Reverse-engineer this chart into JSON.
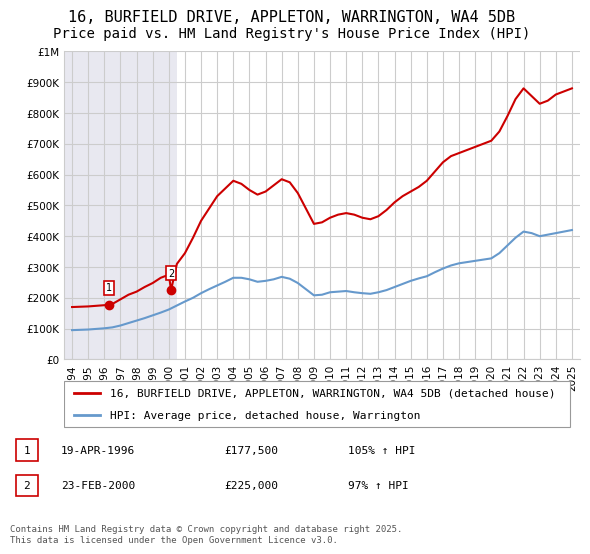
{
  "title": "16, BURFIELD DRIVE, APPLETON, WARRINGTON, WA4 5DB",
  "subtitle": "Price paid vs. HM Land Registry's House Price Index (HPI)",
  "legend_label_red": "16, BURFIELD DRIVE, APPLETON, WARRINGTON, WA4 5DB (detached house)",
  "legend_label_blue": "HPI: Average price, detached house, Warrington",
  "footnote": "Contains HM Land Registry data © Crown copyright and database right 2025.\nThis data is licensed under the Open Government Licence v3.0.",
  "sale_points": [
    {
      "label": "1",
      "date_x": 1996.3,
      "price": 177500
    },
    {
      "label": "2",
      "date_x": 2000.14,
      "price": 225000
    }
  ],
  "sale_annotations": [
    {
      "label": "1",
      "date": "19-APR-1996",
      "price": "£177,500",
      "hpi": "105% ↑ HPI"
    },
    {
      "label": "2",
      "date": "23-FEB-2000",
      "price": "£225,000",
      "hpi": "97% ↑ HPI"
    }
  ],
  "red_line": {
    "x": [
      1994.0,
      1995.0,
      1995.5,
      1996.0,
      1996.3,
      1996.5,
      1997.0,
      1997.5,
      1998.0,
      1998.5,
      1999.0,
      1999.5,
      2000.0,
      2000.14,
      2000.5,
      2001.0,
      2001.5,
      2002.0,
      2002.5,
      2003.0,
      2003.5,
      2004.0,
      2004.5,
      2005.0,
      2005.5,
      2006.0,
      2006.5,
      2007.0,
      2007.5,
      2008.0,
      2008.5,
      2009.0,
      2009.5,
      2010.0,
      2010.5,
      2011.0,
      2011.5,
      2012.0,
      2012.5,
      2013.0,
      2013.5,
      2014.0,
      2014.5,
      2015.0,
      2015.5,
      2016.0,
      2016.5,
      2017.0,
      2017.5,
      2018.0,
      2018.5,
      2019.0,
      2019.5,
      2020.0,
      2020.5,
      2021.0,
      2021.5,
      2022.0,
      2022.5,
      2023.0,
      2023.5,
      2024.0,
      2024.5,
      2025.0
    ],
    "y": [
      170000,
      172000,
      174000,
      176000,
      177500,
      180000,
      195000,
      210000,
      220000,
      235000,
      248000,
      265000,
      275000,
      225000,
      310000,
      345000,
      395000,
      450000,
      490000,
      530000,
      555000,
      580000,
      570000,
      550000,
      535000,
      545000,
      565000,
      585000,
      575000,
      540000,
      490000,
      440000,
      445000,
      460000,
      470000,
      475000,
      470000,
      460000,
      455000,
      465000,
      485000,
      510000,
      530000,
      545000,
      560000,
      580000,
      610000,
      640000,
      660000,
      670000,
      680000,
      690000,
      700000,
      710000,
      740000,
      790000,
      845000,
      880000,
      855000,
      830000,
      840000,
      860000,
      870000,
      880000
    ]
  },
  "blue_line": {
    "x": [
      1994.0,
      1995.0,
      1995.5,
      1996.0,
      1996.5,
      1997.0,
      1997.5,
      1998.0,
      1998.5,
      1999.0,
      1999.5,
      2000.0,
      2000.5,
      2001.0,
      2001.5,
      2002.0,
      2002.5,
      2003.0,
      2003.5,
      2004.0,
      2004.5,
      2005.0,
      2005.5,
      2006.0,
      2006.5,
      2007.0,
      2007.5,
      2008.0,
      2008.5,
      2009.0,
      2009.5,
      2010.0,
      2010.5,
      2011.0,
      2011.5,
      2012.0,
      2012.5,
      2013.0,
      2013.5,
      2014.0,
      2014.5,
      2015.0,
      2015.5,
      2016.0,
      2016.5,
      2017.0,
      2017.5,
      2018.0,
      2018.5,
      2019.0,
      2019.5,
      2020.0,
      2020.5,
      2021.0,
      2021.5,
      2022.0,
      2022.5,
      2023.0,
      2023.5,
      2024.0,
      2024.5,
      2025.0
    ],
    "y": [
      95000,
      97000,
      99000,
      101000,
      104000,
      110000,
      118000,
      126000,
      134000,
      143000,
      152000,
      162000,
      175000,
      188000,
      200000,
      215000,
      228000,
      240000,
      252000,
      265000,
      265000,
      260000,
      252000,
      255000,
      260000,
      268000,
      262000,
      248000,
      228000,
      208000,
      210000,
      218000,
      220000,
      222000,
      218000,
      215000,
      213000,
      218000,
      225000,
      235000,
      245000,
      255000,
      263000,
      270000,
      283000,
      295000,
      305000,
      312000,
      316000,
      320000,
      324000,
      328000,
      345000,
      370000,
      395000,
      415000,
      410000,
      400000,
      405000,
      410000,
      415000,
      420000
    ]
  },
  "xlim": [
    1993.5,
    2025.5
  ],
  "ylim": [
    0,
    1000000
  ],
  "yticks": [
    0,
    100000,
    200000,
    300000,
    400000,
    500000,
    600000,
    700000,
    800000,
    900000,
    1000000
  ],
  "ytick_labels": [
    "£0",
    "£100K",
    "£200K",
    "£300K",
    "£400K",
    "£500K",
    "£600K",
    "£700K",
    "£800K",
    "£900K",
    "£1M"
  ],
  "xticks": [
    1994,
    1995,
    1996,
    1997,
    1998,
    1999,
    2000,
    2001,
    2002,
    2003,
    2004,
    2005,
    2006,
    2007,
    2008,
    2009,
    2010,
    2011,
    2012,
    2013,
    2014,
    2015,
    2016,
    2017,
    2018,
    2019,
    2020,
    2021,
    2022,
    2023,
    2024,
    2025
  ],
  "red_color": "#cc0000",
  "blue_color": "#6699cc",
  "grid_color": "#cccccc",
  "bg_color": "#ffffff",
  "hatched_bg_color": "#e8e8f0",
  "hatched_x_end": 2000.5,
  "title_fontsize": 11,
  "subtitle_fontsize": 10,
  "axis_fontsize": 7.5,
  "legend_fontsize": 8,
  "footnote_fontsize": 6.5
}
